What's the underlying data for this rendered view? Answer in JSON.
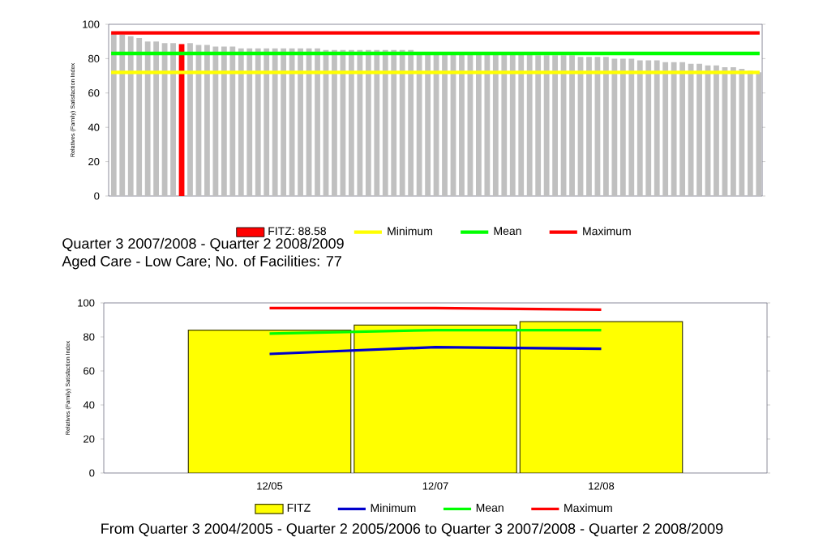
{
  "chart_data": [
    {
      "type": "bar",
      "ylabel": "Relatives (Family) Satisfaction Index",
      "categories": [
        null,
        null,
        null,
        null,
        null,
        null,
        null,
        null,
        null,
        null,
        null,
        null,
        null,
        null,
        null,
        null,
        null,
        null,
        null,
        null,
        null,
        null,
        null,
        null,
        null,
        null,
        null,
        null,
        null,
        null,
        null,
        null,
        null,
        null,
        null,
        null,
        null,
        null,
        null,
        null,
        null,
        null,
        null,
        null,
        null,
        null,
        null,
        null,
        null,
        null,
        null,
        null,
        null,
        null,
        null,
        null,
        null,
        null,
        null,
        null,
        null,
        null,
        null,
        null,
        null,
        null,
        null,
        null,
        null,
        null,
        null,
        null,
        null,
        null,
        null,
        null,
        null
      ],
      "series": [
        {
          "color": "#c0c0c0",
          "values": [
            95,
            94,
            93,
            92,
            90,
            90,
            89,
            89,
            null,
            89,
            88,
            88,
            87,
            87,
            87,
            86,
            86,
            86,
            86,
            86,
            86,
            86,
            86,
            86,
            86,
            85,
            85,
            85,
            85,
            85,
            85,
            85,
            85,
            85,
            85,
            85,
            84,
            84,
            84,
            84,
            84,
            84,
            84,
            84,
            84,
            83,
            83,
            83,
            83,
            83,
            82,
            82,
            82,
            82,
            82,
            81,
            81,
            81,
            81,
            80,
            80,
            80,
            79,
            79,
            79,
            78,
            78,
            78,
            77,
            77,
            76,
            76,
            75,
            75,
            74,
            73,
            72
          ]
        },
        {
          "name": "FITZ: 88.58",
          "color": "#ff0000",
          "values": [
            null,
            null,
            null,
            null,
            null,
            null,
            null,
            null,
            88.58,
            null,
            null,
            null,
            null,
            null,
            null,
            null,
            null,
            null,
            null,
            null,
            null,
            null,
            null,
            null,
            null,
            null,
            null,
            null,
            null,
            null,
            null,
            null,
            null,
            null,
            null,
            null,
            null,
            null,
            null,
            null,
            null,
            null,
            null,
            null,
            null,
            null,
            null,
            null,
            null,
            null,
            null,
            null,
            null,
            null,
            null,
            null,
            null,
            null,
            null,
            null,
            null,
            null,
            null,
            null,
            null,
            null,
            null,
            null,
            null,
            null,
            null,
            null,
            null,
            null,
            null,
            null,
            null
          ]
        }
      ],
      "ref_lines": [
        {
          "axis": "y",
          "value": 72,
          "label": "Minimum",
          "color": "#ffff00"
        },
        {
          "axis": "y",
          "value": 83,
          "label": "Mean",
          "color": "#00ff00"
        },
        {
          "axis": "y",
          "value": 95,
          "label": "Maximum",
          "color": "#ff0000"
        }
      ],
      "ylim": [
        0,
        100
      ],
      "yticks": [
        0,
        20,
        40,
        60,
        80,
        100
      ],
      "legend": "bottom",
      "annotations": [
        "Quarter 3 2007/2008  - Quarter 2 2008/2009",
        "Aged Care - Low Care; No. of Facilities:  77"
      ]
    },
    {
      "type": "bar",
      "ylabel": "Relatives (Family) Satisfaction Index",
      "categories": [
        "12/05",
        "12/07",
        "12/08"
      ],
      "series": [
        {
          "name": "FITZ",
          "color": "#ffff00",
          "values": [
            84,
            87,
            89
          ]
        },
        {
          "name": "Minimum",
          "type": "line",
          "color": "#0000cc",
          "values": [
            70,
            74,
            73
          ]
        },
        {
          "name": "Mean",
          "type": "line",
          "color": "#00ff00",
          "values": [
            82,
            84,
            84
          ]
        },
        {
          "name": "Maximum",
          "type": "line",
          "color": "#ff0000",
          "values": [
            97,
            97,
            96
          ]
        }
      ],
      "ylim": [
        0,
        100
      ],
      "yticks": [
        0,
        20,
        40,
        60,
        80,
        100
      ],
      "legend": "bottom",
      "annotations": [
        "From Quarter 3 2004/2005  - Quarter 2 2005/2006 to Quarter 3 2007/2008 - Quarter 2 2008/2009"
      ]
    }
  ]
}
